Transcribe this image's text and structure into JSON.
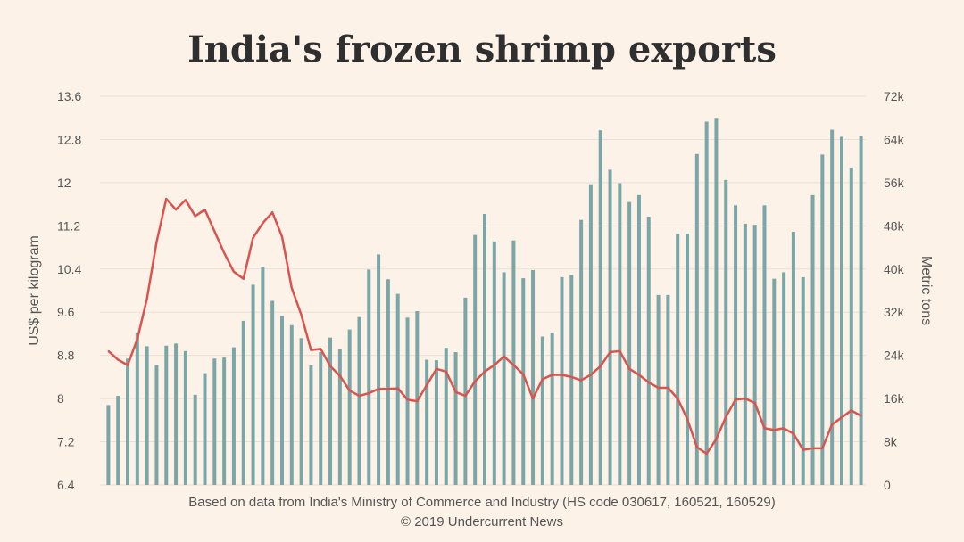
{
  "chart_data": {
    "type": "bar+line",
    "title": "India's frozen shrimp exports",
    "left_axis": {
      "label": "US$ per kilogram",
      "range": [
        6.4,
        13.6
      ],
      "ticks": [
        "6.4",
        "7.2",
        "8",
        "8.8",
        "9.6",
        "10.4",
        "11.2",
        "12",
        "12.8",
        "13.6"
      ],
      "tick_values": [
        6.4,
        7.2,
        8.0,
        8.8,
        9.6,
        10.4,
        11.2,
        12.0,
        12.8,
        13.6
      ]
    },
    "right_axis": {
      "label": "Metric tons",
      "range": [
        0,
        72000
      ],
      "ticks": [
        "0",
        "8k",
        "16k",
        "24k",
        "32k",
        "40k",
        "48k",
        "56k",
        "64k",
        "72k"
      ],
      "tick_values": [
        0,
        8000,
        16000,
        24000,
        32000,
        40000,
        48000,
        56000,
        64000,
        72000
      ]
    },
    "grid": true,
    "series": [
      {
        "name": "Volume (metric tons)",
        "type": "bar",
        "axis": "right",
        "color": "#7aa6a8",
        "values": [
          14800,
          16500,
          23400,
          28200,
          25700,
          22200,
          25800,
          26200,
          24800,
          16700,
          20700,
          23400,
          23600,
          25500,
          30400,
          37100,
          40400,
          34100,
          31300,
          29600,
          27200,
          22200,
          24600,
          27300,
          25100,
          28800,
          31100,
          39900,
          42700,
          38100,
          35400,
          31000,
          32200,
          23200,
          23100,
          25400,
          24600,
          34700,
          46300,
          50200,
          45100,
          39400,
          45300,
          38300,
          39800,
          27500,
          28200,
          38500,
          38900,
          49100,
          55700,
          65700,
          58400,
          55900,
          52400,
          53700,
          49700,
          35200,
          35200,
          46500,
          46500,
          61300,
          67300,
          68000,
          56500,
          51800,
          48400,
          48200,
          51800,
          38200,
          39400,
          46900,
          38500,
          53700,
          61200,
          65800,
          64500,
          58800,
          64600
        ]
      },
      {
        "name": "Price (US$ per kilogram)",
        "type": "line",
        "axis": "left",
        "color": "#d9534f",
        "values": [
          8.88,
          8.72,
          8.62,
          9.1,
          9.85,
          10.9,
          11.7,
          11.5,
          11.68,
          11.38,
          11.5,
          11.1,
          10.7,
          10.35,
          10.22,
          10.98,
          11.25,
          11.45,
          11.0,
          10.05,
          9.55,
          8.9,
          8.92,
          8.6,
          8.42,
          8.15,
          8.05,
          8.1,
          8.18,
          8.18,
          8.19,
          7.98,
          7.95,
          8.25,
          8.55,
          8.5,
          8.12,
          8.05,
          8.32,
          8.5,
          8.62,
          8.78,
          8.62,
          8.45,
          8.0,
          8.36,
          8.44,
          8.44,
          8.4,
          8.34,
          8.44,
          8.6,
          8.86,
          8.88,
          8.55,
          8.44,
          8.3,
          8.2,
          8.2,
          8.0,
          7.62,
          7.1,
          6.98,
          7.25,
          7.66,
          7.98,
          8.0,
          7.92,
          7.45,
          7.42,
          7.45,
          7.35,
          7.05,
          7.08,
          7.08,
          7.52,
          7.65,
          7.78,
          7.68
        ]
      }
    ]
  },
  "source": {
    "line1": "Based on data from India's Ministry of Commerce and Industry (HS code 030617, 160521, 160529)",
    "line2": "© 2019 Undercurrent News"
  }
}
